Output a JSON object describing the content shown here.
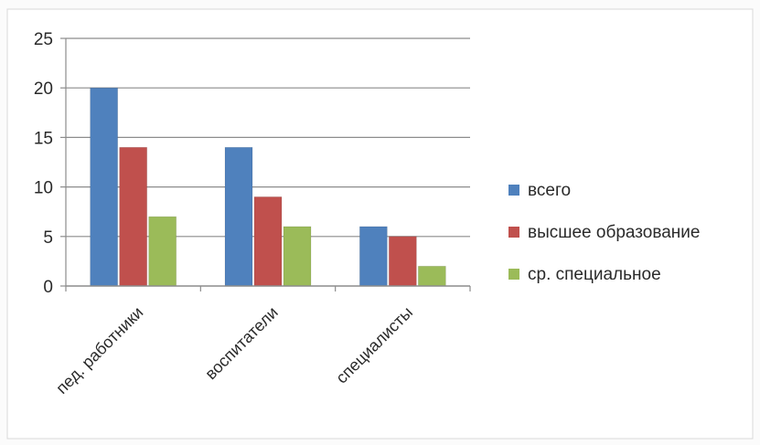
{
  "chart_data": {
    "type": "bar",
    "title": "",
    "xlabel": "",
    "ylabel": "",
    "categories": [
      "пед. работники",
      "воспитатели",
      "специалисты"
    ],
    "series": [
      {
        "name": "всего",
        "values": [
          20,
          14,
          6
        ],
        "color": "#4f81bd"
      },
      {
        "name": "высшее образование",
        "values": [
          14,
          9,
          5
        ],
        "color": "#c0504d"
      },
      {
        "name": "ср. специальное",
        "values": [
          7,
          6,
          2
        ],
        "color": "#9bbb59"
      }
    ],
    "ylim": [
      0,
      25
    ],
    "yticks": [
      0,
      5,
      10,
      15,
      20,
      25
    ],
    "grid": true,
    "legend_position": "right"
  }
}
